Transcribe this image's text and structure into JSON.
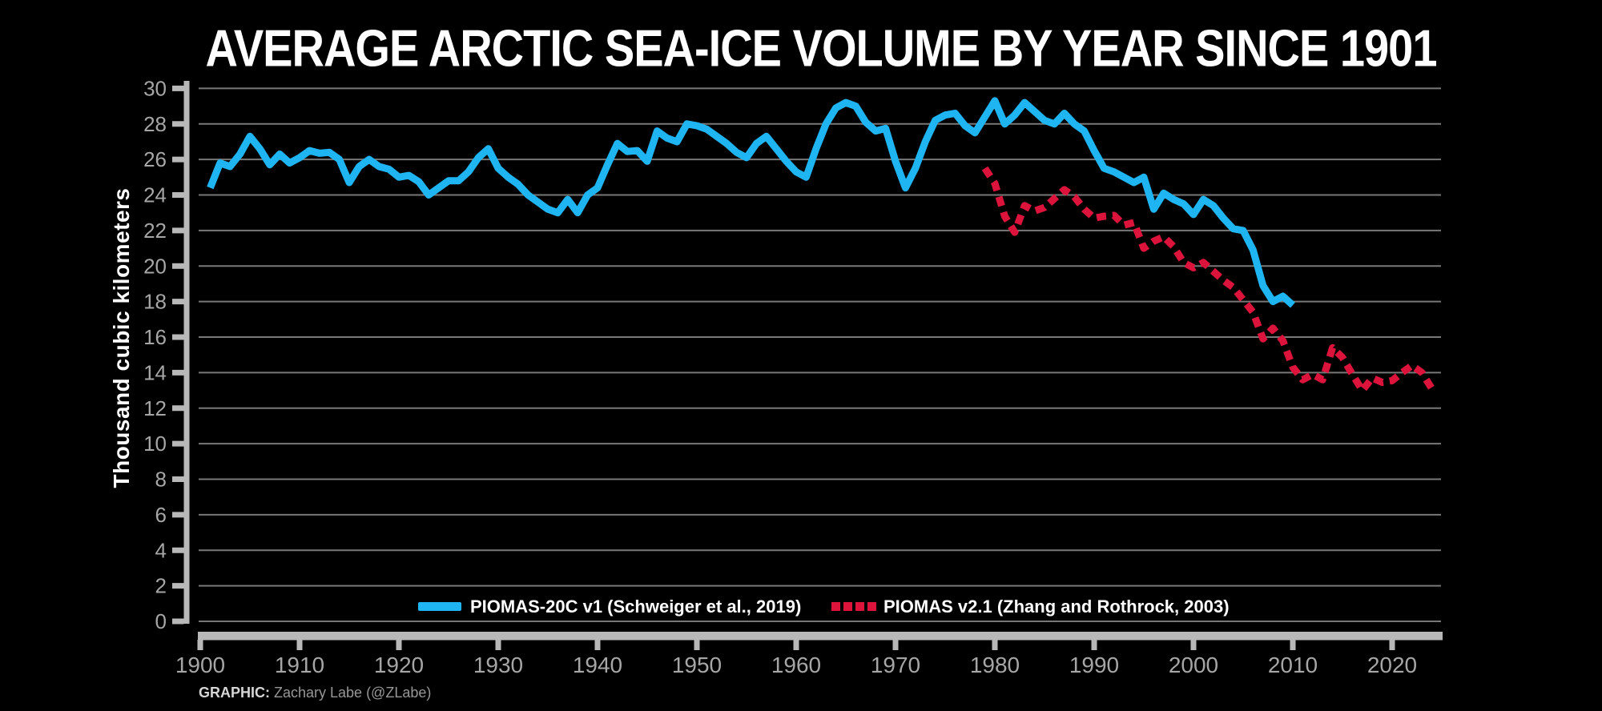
{
  "title": "AVERAGE ARCTIC SEA-ICE VOLUME BY YEAR SINCE 1901",
  "credit": {
    "prefix": "GRAPHIC:",
    "author": " Zachary Labe (@ZLabe)"
  },
  "colors": {
    "background": "#000000",
    "series_blue": "#1fb4f2",
    "series_red": "#dc143c",
    "gridline": "#787878",
    "spine": "#b8b8b8",
    "tick_label": "#a6a6a6",
    "text_white": "#ffffff"
  },
  "chart_data": {
    "type": "line",
    "title": "AVERAGE ARCTIC SEA-ICE VOLUME BY YEAR SINCE 1901",
    "xlabel": "",
    "ylabel": "Thousand cubic kilometers",
    "xlim": [
      1900,
      2025
    ],
    "ylim": [
      0,
      30
    ],
    "x_ticks": [
      1900,
      1910,
      1920,
      1930,
      1940,
      1950,
      1960,
      1970,
      1980,
      1990,
      2000,
      2010,
      2020
    ],
    "y_ticks": [
      0,
      2,
      4,
      6,
      8,
      10,
      12,
      14,
      16,
      18,
      20,
      22,
      24,
      26,
      28,
      30
    ],
    "grid": "horizontal gridlines at every y tick",
    "legend_position": "bottom center inside plot",
    "series": [
      {
        "name": "PIOMAS-20C v1 (Schweiger et al., 2019)",
        "color": "#1fb4f2",
        "line_style": "solid",
        "start_year": 1901,
        "end_year": 2010,
        "annual_values": [
          24.4,
          25.8,
          25.6,
          26.3,
          27.3,
          26.6,
          25.7,
          26.3,
          25.8,
          26.1,
          26.5,
          26.35,
          26.4,
          26.0,
          24.7,
          25.6,
          26.0,
          25.6,
          25.45,
          25.0,
          25.1,
          24.75,
          24.0,
          24.4,
          24.8,
          24.8,
          25.3,
          26.1,
          26.6,
          25.5,
          25.0,
          24.6,
          24.0,
          23.6,
          23.2,
          23.0,
          23.75,
          23.0,
          24.0,
          24.4,
          25.7,
          26.9,
          26.45,
          26.5,
          25.9,
          27.6,
          27.2,
          27.0,
          28.0,
          27.9,
          27.7,
          27.3,
          26.9,
          26.4,
          26.1,
          26.9,
          27.3,
          26.6,
          25.9,
          25.3,
          25.0,
          26.6,
          28.0,
          28.9,
          29.2,
          29.0,
          28.1,
          27.6,
          27.75,
          25.9,
          24.4,
          25.5,
          27.0,
          28.2,
          28.5,
          28.6,
          27.9,
          27.5,
          28.4,
          29.3,
          28.0,
          28.5,
          29.2,
          28.7,
          28.2,
          28.0,
          28.6,
          28.0,
          27.6,
          26.5,
          25.5,
          25.3,
          25.0,
          24.7,
          25.0,
          23.2,
          24.1,
          23.75,
          23.5,
          22.9,
          23.75,
          23.4,
          22.7,
          22.1,
          22.0,
          20.9,
          18.9,
          18.0,
          18.3,
          17.8
        ]
      },
      {
        "name": "PIOMAS v2.1 (Zhang and Rothrock, 2003)",
        "color": "#dc143c",
        "line_style": "dashed",
        "start_year": 1979,
        "end_year": 2024,
        "annual_values": [
          25.5,
          24.65,
          22.8,
          21.9,
          23.4,
          23.1,
          23.3,
          23.8,
          24.3,
          23.9,
          23.2,
          22.7,
          22.8,
          22.85,
          22.3,
          22.45,
          21.0,
          21.4,
          21.65,
          21.1,
          20.2,
          19.9,
          20.2,
          19.7,
          19.2,
          18.8,
          18.1,
          17.4,
          15.9,
          16.5,
          15.8,
          14.3,
          13.6,
          13.9,
          13.6,
          15.4,
          14.85,
          13.9,
          13.0,
          13.7,
          13.45,
          13.55,
          14.0,
          14.4,
          14.0,
          13.1
        ]
      }
    ]
  }
}
